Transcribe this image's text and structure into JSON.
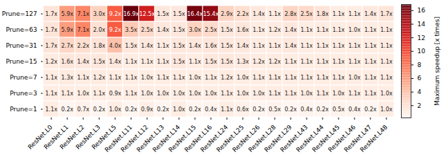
{
  "chart_data": {
    "type": "heatmap",
    "x": [
      "ResNet.L0",
      "ResNet.L1",
      "ResNet.L2",
      "ResNet.L3",
      "ResNet.L5",
      "ResNet.L11",
      "ResNet.L12",
      "ResNet.L13",
      "ResNet.L14",
      "ResNet.L15",
      "ResNet.L16",
      "ResNet.L24",
      "ResNet.L25",
      "ResNet.L26",
      "ResNet.L28",
      "ResNet.L29",
      "ResNet.L43",
      "ResNet.L44",
      "ResNet.L45",
      "ResNet.L46",
      "ResNet.L47",
      "ResNet.L48"
    ],
    "y": [
      "Prune=127",
      "Prune=63",
      "Prune=31",
      "Prune=15",
      "Prune=7",
      "Prune=3",
      "Prune=1"
    ],
    "values": [
      [
        1.7,
        5.9,
        7.1,
        3.0,
        9.2,
        16.9,
        12.5,
        1.5,
        1.5,
        16.4,
        15.4,
        2.9,
        2.2,
        1.4,
        1.1,
        2.8,
        2.5,
        1.8,
        1.1,
        1.1,
        1.4,
        1.7
      ],
      [
        1.7,
        5.9,
        7.1,
        2.0,
        9.2,
        3.5,
        2.5,
        1.4,
        1.5,
        3.0,
        2.5,
        1.5,
        1.6,
        1.1,
        1.2,
        1.4,
        1.1,
        1.1,
        1.1,
        1.0,
        1.1,
        1.1
      ],
      [
        1.7,
        2.7,
        2.2,
        1.8,
        4.0,
        1.5,
        1.4,
        1.1,
        1.5,
        1.4,
        1.6,
        1.5,
        1.4,
        1.1,
        1.1,
        1.4,
        1.1,
        1.1,
        1.1,
        1.1,
        1.1,
        1.1
      ],
      [
        1.2,
        1.6,
        1.4,
        1.5,
        1.4,
        1.1,
        1.1,
        1.1,
        1.5,
        1.1,
        1.5,
        1.5,
        1.3,
        1.2,
        1.2,
        1.1,
        1.1,
        1.1,
        1.1,
        1.1,
        1.1,
        1.1
      ],
      [
        1.1,
        1.3,
        1.1,
        1.2,
        1.1,
        1.1,
        1.0,
        1.1,
        1.1,
        1.0,
        1.1,
        1.2,
        1.0,
        1.1,
        1.1,
        1.1,
        1.1,
        1.1,
        1.1,
        1.0,
        1.1,
        1.1
      ],
      [
        1.1,
        1.1,
        1.0,
        1.1,
        0.9,
        1.1,
        1.0,
        1.0,
        1.0,
        1.0,
        1.0,
        1.1,
        1.0,
        1.0,
        1.1,
        1.1,
        1.0,
        1.1,
        1.0,
        1.1,
        1.1,
        1.0
      ],
      [
        1.1,
        0.2,
        0.7,
        0.2,
        1.0,
        0.2,
        0.9,
        0.2,
        1.0,
        0.2,
        0.4,
        1.1,
        0.6,
        0.2,
        0.5,
        0.2,
        0.4,
        0.2,
        0.5,
        0.4,
        0.2,
        1.0
      ]
    ],
    "value_labels": [
      [
        "1.7x",
        "5.9x",
        "7.1x",
        "3.0x",
        "9.2x",
        "16.9x",
        "12.5x",
        "1.5x",
        "1.5x",
        "16.4x",
        "15.4x",
        "2.9x",
        "2.2x",
        "1.4x",
        "1.1x",
        "2.8x",
        "2.5x",
        "1.8x",
        "1.1x",
        "1.1x",
        "1.4x",
        "1.7x"
      ],
      [
        "1.7x",
        "5.9x",
        "7.1x",
        "2.0x",
        "9.2x",
        "3.5x",
        "2.5x",
        "1.4x",
        "1.5x",
        "3.0x",
        "2.5x",
        "1.5x",
        "1.6x",
        "1.1x",
        "1.2x",
        "1.4x",
        "1.1x",
        "1.1x",
        "1.1x",
        "1.0x",
        "1.1x",
        "1.1x"
      ],
      [
        "1.7x",
        "2.7x",
        "2.2x",
        "1.8x",
        "4.0x",
        "1.5x",
        "1.4x",
        "1.1x",
        "1.5x",
        "1.4x",
        "1.6x",
        "1.5x",
        "1.4x",
        "1.1x",
        "1.1x",
        "1.4x",
        "1.1x",
        "1.1x",
        "1.1x",
        "1.1x",
        "1.1x",
        "1.1x"
      ],
      [
        "1.2x",
        "1.6x",
        "1.4x",
        "1.5x",
        "1.4x",
        "1.1x",
        "1.1x",
        "1.1x",
        "1.5x",
        "1.1x",
        "1.5x",
        "1.5x",
        "1.3x",
        "1.2x",
        "1.2x",
        "1.1x",
        "1.1x",
        "1.1x",
        "1.1x",
        "1.1x",
        "1.1x",
        "1.1x"
      ],
      [
        "1.1x",
        "1.3x",
        "1.1x",
        "1.2x",
        "1.1x",
        "1.1x",
        "1.0x",
        "1.1x",
        "1.1x",
        "1.0x",
        "1.1x",
        "1.2x",
        "1.0x",
        "1.1x",
        "1.1x",
        "1.1x",
        "1.1x",
        "1.1x",
        "1.1x",
        "1.0x",
        "1.1x",
        "1.1x"
      ],
      [
        "1.1x",
        "1.1x",
        "1.0x",
        "1.1x",
        "0.9x",
        "1.1x",
        "1.0x",
        "1.0x",
        "1.0x",
        "1.0x",
        "1.0x",
        "1.1x",
        "1.0x",
        "1.0x",
        "1.1x",
        "1.1x",
        "1.0x",
        "1.1x",
        "1.0x",
        "1.1x",
        "1.1x",
        "1.0x"
      ],
      [
        "1.1x",
        "0.2x",
        "0.7x",
        "0.2x",
        "1.0x",
        "0.2x",
        "0.9x",
        "0.2x",
        "1.0x",
        "0.2x",
        "0.4x",
        "1.1x",
        "0.6x",
        "0.2x",
        "0.5x",
        "0.2x",
        "0.4x",
        "0.2x",
        "0.5x",
        "0.4x",
        "0.2x",
        "1.0x"
      ]
    ],
    "data_labels": true,
    "color": "reds",
    "colorbar": {
      "label": "Maximum speedup [x times]",
      "range": [
        0.2,
        16.9
      ],
      "ticks": [
        2,
        4,
        6,
        8,
        10,
        12,
        14,
        16
      ]
    }
  }
}
